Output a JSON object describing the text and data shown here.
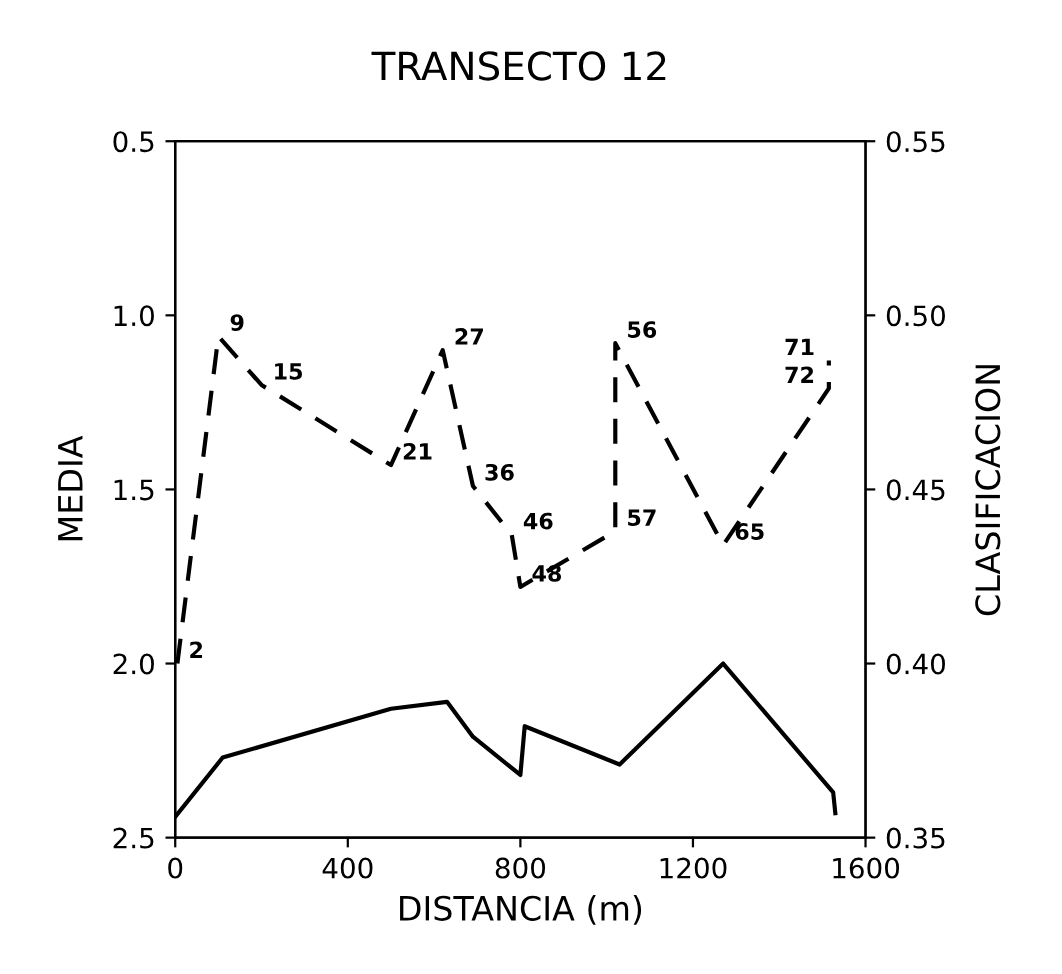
{
  "chart_data": {
    "type": "line",
    "title": "TRANSECTO 12",
    "xlabel": "DISTANCIA (m)",
    "ylabel": "MEDIA",
    "y2label": "CLASIFICACION",
    "xlim": [
      0,
      1600
    ],
    "xticks": [
      0,
      400,
      800,
      1200,
      1600
    ],
    "ylim": [
      2.5,
      0.5
    ],
    "yticks": [
      {
        "value": 0.5,
        "label": "0.5"
      },
      {
        "value": 1,
        "label": "1.0"
      },
      {
        "value": 1.5,
        "label": "1.5"
      },
      {
        "value": 2,
        "label": "2.0"
      },
      {
        "value": 2.5,
        "label": "2.5"
      }
    ],
    "y2lim": [
      0.35,
      0.55
    ],
    "y2ticks": [
      {
        "value": 0.35,
        "label": "0.35"
      },
      {
        "value": 0.4,
        "label": "0.40"
      },
      {
        "value": 0.45,
        "label": "0.45"
      },
      {
        "value": 0.5,
        "label": "0.50"
      },
      {
        "value": 0.55,
        "label": "0.55"
      }
    ],
    "grid": false,
    "legend": false,
    "series": [
      {
        "color": "#000000",
        "line_style": "dashed",
        "x": [
          5,
          100,
          200,
          500,
          620,
          690,
          780,
          800,
          1020,
          1020,
          1270,
          1515,
          1515
        ],
        "values": [
          2.0,
          1.06,
          1.2,
          1.43,
          1.1,
          1.49,
          1.63,
          1.78,
          1.62,
          1.08,
          1.66,
          1.21,
          1.13
        ]
      },
      {
        "color": "#000000",
        "line_style": "solid",
        "axis": "y2",
        "x": [
          0,
          110,
          500,
          630,
          690,
          800,
          810,
          1030,
          1270,
          1525,
          1530
        ],
        "values": [
          0.356,
          0.373,
          0.387,
          0.389,
          0.379,
          0.368,
          0.382,
          0.371,
          0.4,
          0.363,
          0.357
        ]
      }
    ],
    "annotations": [
      {
        "text": "2",
        "x": 5,
        "y": 2.0
      },
      {
        "text": "9",
        "x": 100,
        "y": 1.06
      },
      {
        "text": "15",
        "x": 200,
        "y": 1.2
      },
      {
        "text": "21",
        "x": 500,
        "y": 1.43
      },
      {
        "text": "27",
        "x": 620,
        "y": 1.1
      },
      {
        "text": "36",
        "x": 690,
        "y": 1.49
      },
      {
        "text": "46",
        "x": 780,
        "y": 1.63
      },
      {
        "text": "48",
        "x": 800,
        "y": 1.78
      },
      {
        "text": "57",
        "x": 1020,
        "y": 1.62
      },
      {
        "text": "56",
        "x": 1020,
        "y": 1.08
      },
      {
        "text": "65",
        "x": 1270,
        "y": 1.66
      },
      {
        "text": "72",
        "x": 1515,
        "y": 1.21
      },
      {
        "text": "71",
        "x": 1515,
        "y": 1.13
      }
    ]
  }
}
